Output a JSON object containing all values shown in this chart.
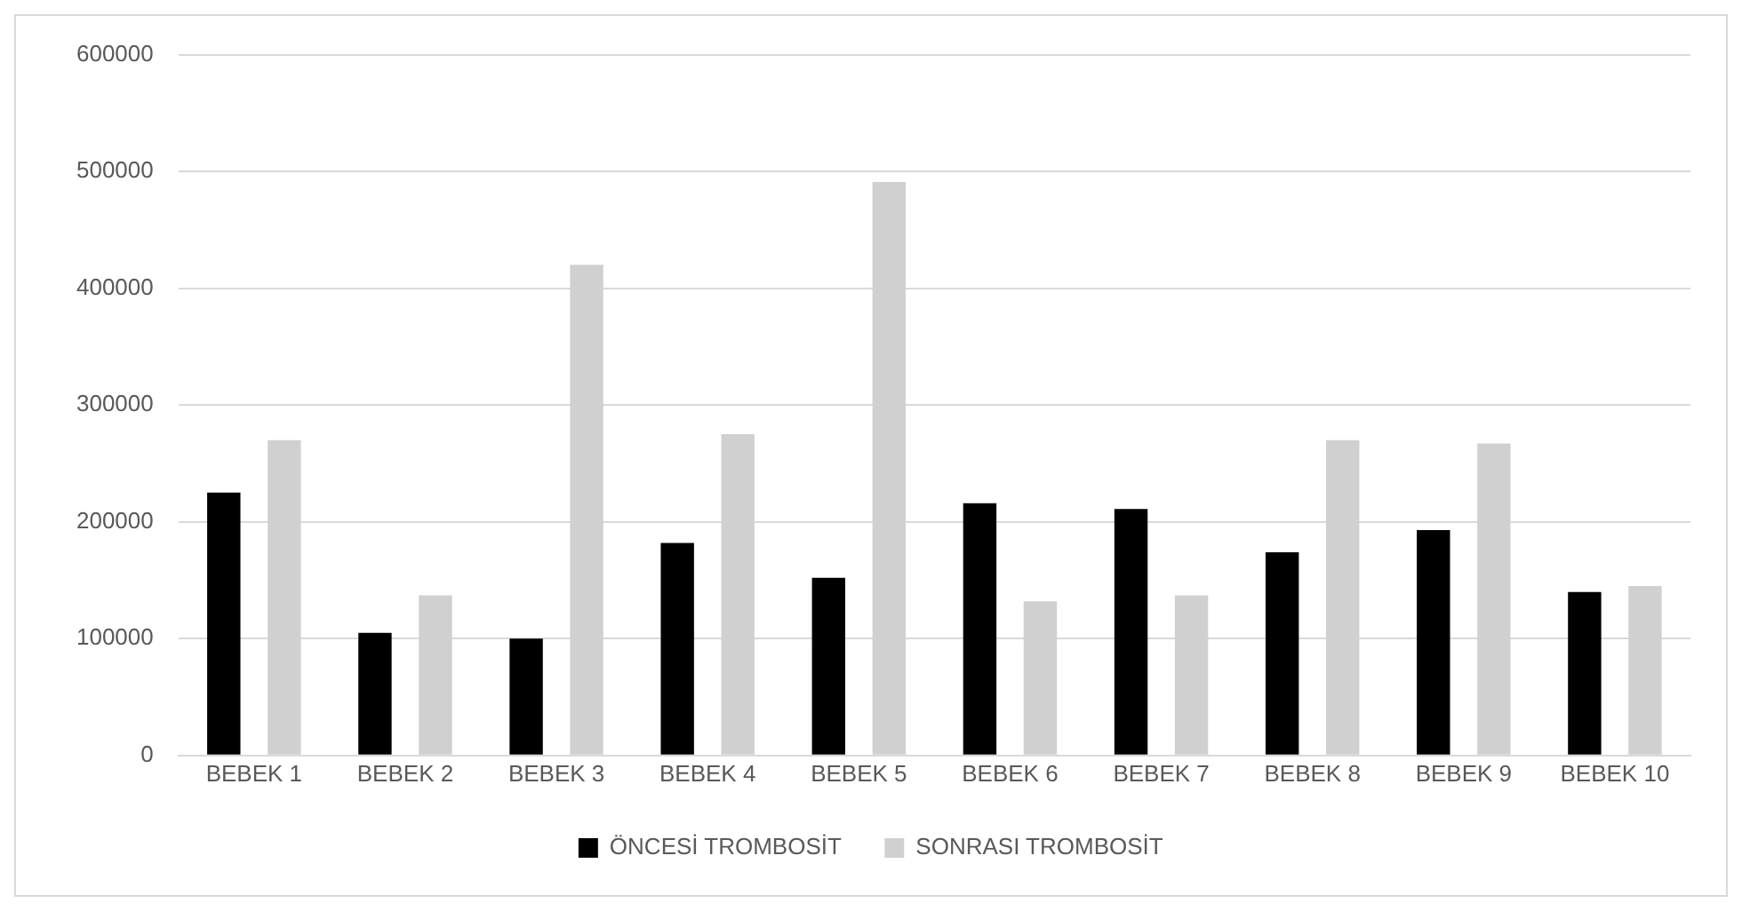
{
  "chart_data": {
    "type": "bar",
    "categories": [
      "BEBEK 1",
      "BEBEK 2",
      "BEBEK 3",
      "BEBEK 4",
      "BEBEK 5",
      "BEBEK 6",
      "BEBEK 7",
      "BEBEK 8",
      "BEBEK 9",
      "BEBEK 10"
    ],
    "series": [
      {
        "name": "ÖNCESİ TROMBOSİT",
        "color": "#000000",
        "values": [
          225000,
          105000,
          100000,
          182000,
          152000,
          216000,
          211000,
          174000,
          193000,
          140000
        ]
      },
      {
        "name": "SONRASI TROMBOSİT",
        "color": "#d0d0d0",
        "values": [
          270000,
          137000,
          420000,
          275000,
          491000,
          132000,
          137000,
          270000,
          267000,
          145000
        ]
      }
    ],
    "ylim": [
      0,
      600000
    ],
    "yticks": [
      0,
      100000,
      200000,
      300000,
      400000,
      500000,
      600000
    ],
    "grid": "y",
    "legend": "bottom"
  }
}
